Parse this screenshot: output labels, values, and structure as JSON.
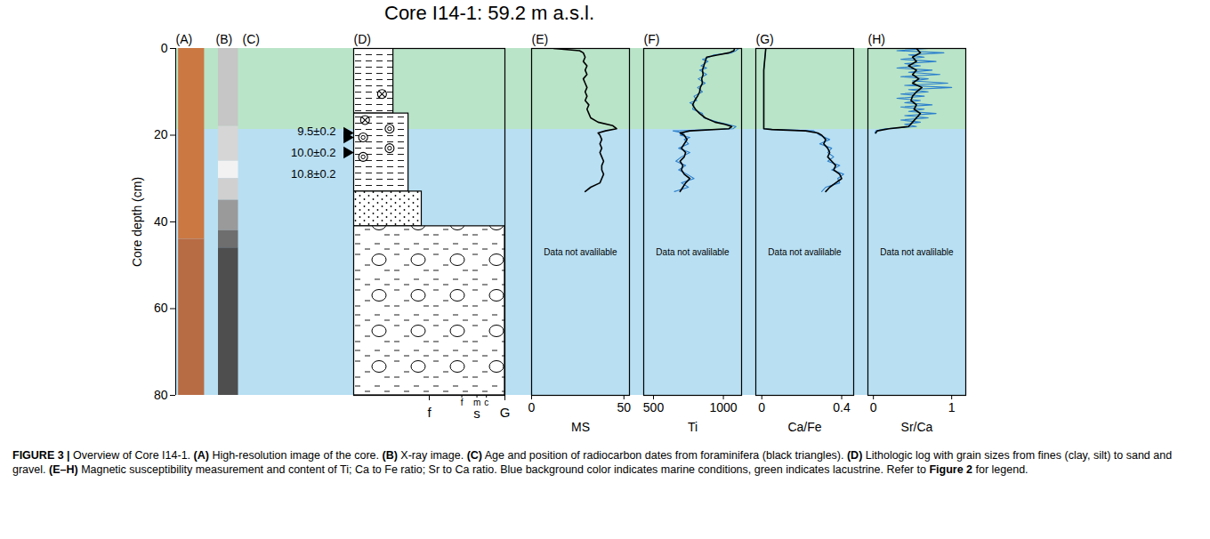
{
  "figure": {
    "title": "Core I14-1: 59.2 m a.s.l.",
    "y_label": "Core depth (cm)",
    "ylim": [
      0,
      80
    ],
    "yticks": [
      0,
      20,
      40,
      60,
      80
    ],
    "zones": [
      {
        "from": 0,
        "to": 18.7,
        "color": "#b9e4c8"
      },
      {
        "from": 18.7,
        "to": 80,
        "color": "#b8dff2"
      }
    ],
    "caption": [
      {
        "text": "FIGURE 3 | ",
        "bold": true
      },
      {
        "text": "Overview of Core I14-1. "
      },
      {
        "text": "(A)",
        "bold": true
      },
      {
        "text": " High-resolution image of the core. "
      },
      {
        "text": "(B)",
        "bold": true
      },
      {
        "text": " X-ray image. "
      },
      {
        "text": "(C)",
        "bold": true
      },
      {
        "text": " Age and position of radiocarbon dates from foraminifera (black triangles). "
      },
      {
        "text": "(D)",
        "bold": true
      },
      {
        "text": " Lithologic log with grain sizes from fines (clay, silt) to sand and gravel. "
      },
      {
        "text": "(E–H)",
        "bold": true
      },
      {
        "text": " Magnetic susceptibility measurement and content of Ti; Ca to Fe ratio; Sr to Ca ratio. Blue background color indicates marine conditions, green indicates lacustrine. Refer to "
      },
      {
        "text": "Figure 2",
        "bold": true
      },
      {
        "text": " for legend."
      }
    ]
  },
  "chart_data": [
    {
      "type": "strip",
      "title": "(A)",
      "bounds": [
        0,
        44,
        80
      ],
      "colors": [
        "#cb7842",
        "#b86c44"
      ]
    },
    {
      "type": "strip",
      "title": "(B)",
      "bounds": [
        0,
        18,
        26,
        30,
        35,
        42,
        46,
        80
      ],
      "colors": [
        "#c6c6c6",
        "#d6d6d6",
        "#f2f2f2",
        "#d0d0d0",
        "#9a9a9a",
        "#6e6e6e",
        "#4e4e4e"
      ]
    },
    {
      "type": "dates",
      "title": "(C)",
      "marker": "triangle",
      "dates": [
        {
          "label": "9.5±0.2",
          "depth": 19.5
        },
        {
          "label": "10.0±0.2",
          "depth": 20.5
        },
        {
          "label": "10.8±0.2",
          "depth": 24
        }
      ]
    },
    {
      "type": "lithology",
      "title": "(D)",
      "xlim": [
        0,
        4
      ],
      "xticks": [
        {
          "value": 2,
          "label": "f"
        },
        {
          "value": 4,
          "label": "G"
        }
      ],
      "sand_ticks": [
        {
          "value": 2.86,
          "label": "f"
        },
        {
          "value": 3.26,
          "label": "m"
        },
        {
          "value": 3.51,
          "label": "c"
        }
      ],
      "sand_label": {
        "value": 3.26,
        "label": "s"
      },
      "layers": [
        {
          "top": 0,
          "bottom": 15,
          "grain": 1.05,
          "lithology": "fines"
        },
        {
          "top": 15,
          "bottom": 33,
          "grain": 1.45,
          "lithology": "fines"
        },
        {
          "top": 33,
          "bottom": 41,
          "grain": 1.8,
          "lithology": "sand"
        },
        {
          "top": 41,
          "bottom": 80,
          "grain": 4,
          "lithology": "gravel"
        }
      ],
      "symbols": [
        {
          "kind": "plant",
          "grain": 0.75,
          "depth": 10.5
        },
        {
          "kind": "plant",
          "grain": 0.3,
          "depth": 16.5
        },
        {
          "kind": "shell",
          "grain": 0.95,
          "depth": 18.5
        },
        {
          "kind": "shell",
          "grain": 0.25,
          "depth": 20.5
        },
        {
          "kind": "shell",
          "grain": 0.95,
          "depth": 23
        },
        {
          "kind": "shell",
          "grain": 0.25,
          "depth": 25
        }
      ]
    },
    {
      "type": "profile",
      "title": "(E)",
      "x_label": "MS",
      "xlim": [
        0,
        53
      ],
      "xticks": [
        0,
        50
      ],
      "annotation": "Data not avalilable",
      "series": [
        {
          "color": "#000000",
          "y": [
            0,
            0.5,
            1,
            2,
            3,
            4,
            5,
            6,
            7,
            8,
            9,
            10,
            11,
            12,
            13,
            14,
            15,
            16,
            17,
            17.8,
            18.5,
            19,
            19.5,
            20,
            21,
            22,
            23,
            24,
            25,
            26,
            27,
            28,
            29,
            30,
            31,
            32,
            33
          ],
          "values": [
            12,
            26,
            28,
            29,
            28,
            30,
            29,
            30,
            28,
            29,
            30,
            29,
            30,
            29,
            31,
            30,
            31,
            32,
            36,
            44,
            46,
            40,
            36,
            37,
            38,
            37,
            38,
            37,
            38,
            39,
            38,
            38,
            39,
            38,
            37,
            32,
            29
          ]
        }
      ]
    },
    {
      "type": "profile",
      "title": "(F)",
      "x_label": "Ti",
      "xlim": [
        430,
        1130
      ],
      "xticks": [
        500,
        1000
      ],
      "annotation": "Data not avalilable",
      "series": [
        {
          "color": "#2a7fcc",
          "y": [
            0,
            0.5,
            1,
            1.5,
            2,
            2.5,
            3,
            4,
            4.5,
            5,
            6,
            7,
            8,
            9,
            10,
            11,
            12,
            12.5,
            13,
            14,
            15,
            16,
            17,
            17.5,
            18,
            18.5,
            19,
            19.5,
            20,
            20.5,
            21,
            22,
            23,
            24,
            25,
            26,
            27,
            28,
            29,
            30,
            31,
            32,
            33
          ],
          "values": [
            1110,
            1090,
            1060,
            930,
            900,
            850,
            890,
            840,
            880,
            830,
            880,
            820,
            870,
            815,
            850,
            790,
            810,
            760,
            790,
            780,
            850,
            860,
            960,
            1030,
            1090,
            1070,
            640,
            720,
            690,
            760,
            720,
            750,
            680,
            760,
            700,
            660,
            730,
            680,
            740,
            790,
            700,
            750,
            650
          ]
        },
        {
          "color": "#000000",
          "y": [
            0,
            0.5,
            1,
            1.5,
            2,
            3,
            4,
            5,
            6,
            7,
            8,
            9,
            10,
            11,
            12,
            13,
            13.5,
            14,
            15,
            16,
            17,
            17.5,
            18,
            18.5,
            19,
            19.5,
            20,
            21,
            22,
            23,
            24,
            25,
            26,
            27,
            28,
            29,
            30,
            31,
            32,
            33
          ],
          "values": [
            1080,
            1075,
            1040,
            960,
            880,
            870,
            860,
            850,
            855,
            845,
            850,
            835,
            830,
            815,
            795,
            780,
            790,
            800,
            830,
            870,
            940,
            1010,
            1060,
            1040,
            760,
            690,
            720,
            740,
            720,
            700,
            730,
            720,
            690,
            710,
            700,
            720,
            760,
            730,
            710,
            690
          ]
        }
      ]
    },
    {
      "type": "profile",
      "title": "(G)",
      "x_label": "Ca/Fe",
      "xlim": [
        -0.03,
        0.46
      ],
      "xticks": [
        0,
        0.4
      ],
      "annotation": "Data not avalilable",
      "series": [
        {
          "color": "#2a7fcc",
          "y": [
            0,
            5,
            10,
            15,
            18.5,
            18.7,
            19,
            20,
            21,
            22,
            23,
            24,
            25,
            26,
            27,
            28,
            29,
            30,
            31,
            32,
            33
          ],
          "values": [
            0.02,
            0.01,
            0.01,
            0.01,
            0.01,
            0.06,
            0.26,
            0.29,
            0.34,
            0.29,
            0.35,
            0.33,
            0.36,
            0.33,
            0.39,
            0.35,
            0.41,
            0.38,
            0.39,
            0.32,
            0.3
          ]
        },
        {
          "color": "#000000",
          "y": [
            0,
            5,
            10,
            15,
            18.5,
            18.7,
            19,
            19.5,
            20,
            21,
            22,
            23,
            24,
            25,
            26,
            27,
            28,
            29,
            30,
            31,
            32,
            33
          ],
          "values": [
            0.02,
            0.01,
            0.01,
            0.01,
            0.01,
            0.05,
            0.22,
            0.28,
            0.3,
            0.32,
            0.31,
            0.33,
            0.34,
            0.33,
            0.35,
            0.37,
            0.36,
            0.39,
            0.4,
            0.37,
            0.34,
            0.32
          ]
        }
      ]
    },
    {
      "type": "profile",
      "title": "(H)",
      "x_label": "Sr/Ca",
      "xlim": [
        -0.07,
        1.18
      ],
      "xticks": [
        0,
        1
      ],
      "annotation": "Data not avalilable",
      "series": [
        {
          "color": "#2a7fcc",
          "y": [
            0,
            0.5,
            1,
            1.5,
            2,
            2.5,
            3,
            3.5,
            4,
            4.5,
            5,
            5.5,
            6,
            6.5,
            7,
            7.5,
            8,
            8.5,
            9,
            9.5,
            10,
            10.5,
            11,
            11.5,
            12,
            12.5,
            13,
            13.5,
            14,
            14.5,
            15,
            15.5,
            16,
            16.5,
            17,
            17.5,
            18,
            18.5,
            19,
            19.5
          ],
          "values": [
            0.7,
            0.3,
            0.9,
            0.45,
            0.65,
            0.35,
            0.8,
            0.4,
            0.6,
            0.3,
            0.75,
            0.45,
            0.85,
            0.35,
            0.7,
            0.5,
            0.95,
            0.4,
            1.0,
            0.45,
            0.7,
            0.35,
            0.65,
            0.3,
            0.6,
            0.4,
            0.75,
            0.35,
            0.65,
            0.45,
            0.8,
            0.4,
            0.7,
            0.35,
            0.6,
            0.4,
            0.55,
            0.15,
            0.03,
            0.02
          ]
        },
        {
          "color": "#000000",
          "y": [
            0,
            1,
            2,
            3,
            4,
            5,
            6,
            7,
            8,
            9,
            10,
            11,
            12,
            13,
            14,
            15,
            16,
            17,
            18,
            18.5,
            19,
            19.5
          ],
          "values": [
            0.55,
            0.6,
            0.5,
            0.55,
            0.45,
            0.55,
            0.5,
            0.58,
            0.5,
            0.62,
            0.55,
            0.5,
            0.48,
            0.55,
            0.52,
            0.6,
            0.55,
            0.5,
            0.45,
            0.2,
            0.05,
            0.03
          ]
        }
      ]
    }
  ]
}
